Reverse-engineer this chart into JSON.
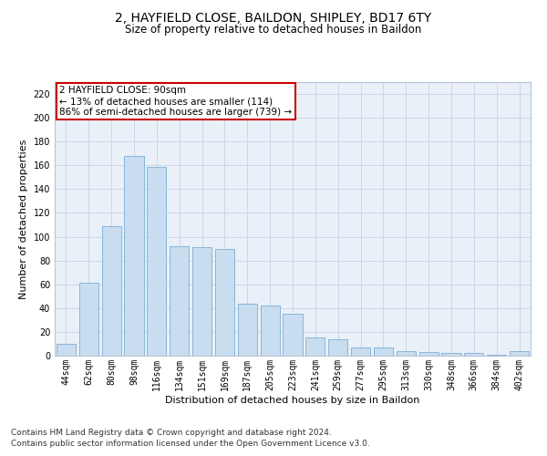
{
  "title1": "2, HAYFIELD CLOSE, BAILDON, SHIPLEY, BD17 6TY",
  "title2": "Size of property relative to detached houses in Baildon",
  "xlabel": "Distribution of detached houses by size in Baildon",
  "ylabel": "Number of detached properties",
  "categories": [
    "44sqm",
    "62sqm",
    "80sqm",
    "98sqm",
    "116sqm",
    "134sqm",
    "151sqm",
    "169sqm",
    "187sqm",
    "205sqm",
    "223sqm",
    "241sqm",
    "259sqm",
    "277sqm",
    "295sqm",
    "313sqm",
    "330sqm",
    "348sqm",
    "366sqm",
    "384sqm",
    "402sqm"
  ],
  "values": [
    10,
    61,
    109,
    168,
    159,
    92,
    91,
    90,
    44,
    42,
    35,
    15,
    14,
    7,
    7,
    4,
    3,
    2,
    2,
    1,
    4
  ],
  "bar_color": "#c9ddf0",
  "bar_edge_color": "#7aaed4",
  "ylim": [
    0,
    230
  ],
  "yticks": [
    0,
    20,
    40,
    60,
    80,
    100,
    120,
    140,
    160,
    180,
    200,
    220
  ],
  "grid_color": "#cdd6e8",
  "bg_color": "#eaf0f8",
  "annotation_line1": "2 HAYFIELD CLOSE: 90sqm",
  "annotation_line2": "← 13% of detached houses are smaller (114)",
  "annotation_line3": "86% of semi-detached houses are larger (739) →",
  "annotation_box_color": "#ffffff",
  "annotation_box_edge": "#cc0000",
  "footnote1": "Contains HM Land Registry data © Crown copyright and database right 2024.",
  "footnote2": "Contains public sector information licensed under the Open Government Licence v3.0.",
  "title1_fontsize": 10,
  "title2_fontsize": 8.5,
  "xlabel_fontsize": 8,
  "ylabel_fontsize": 8,
  "tick_fontsize": 7,
  "annotation_fontsize": 7.5,
  "footnote_fontsize": 6.5
}
